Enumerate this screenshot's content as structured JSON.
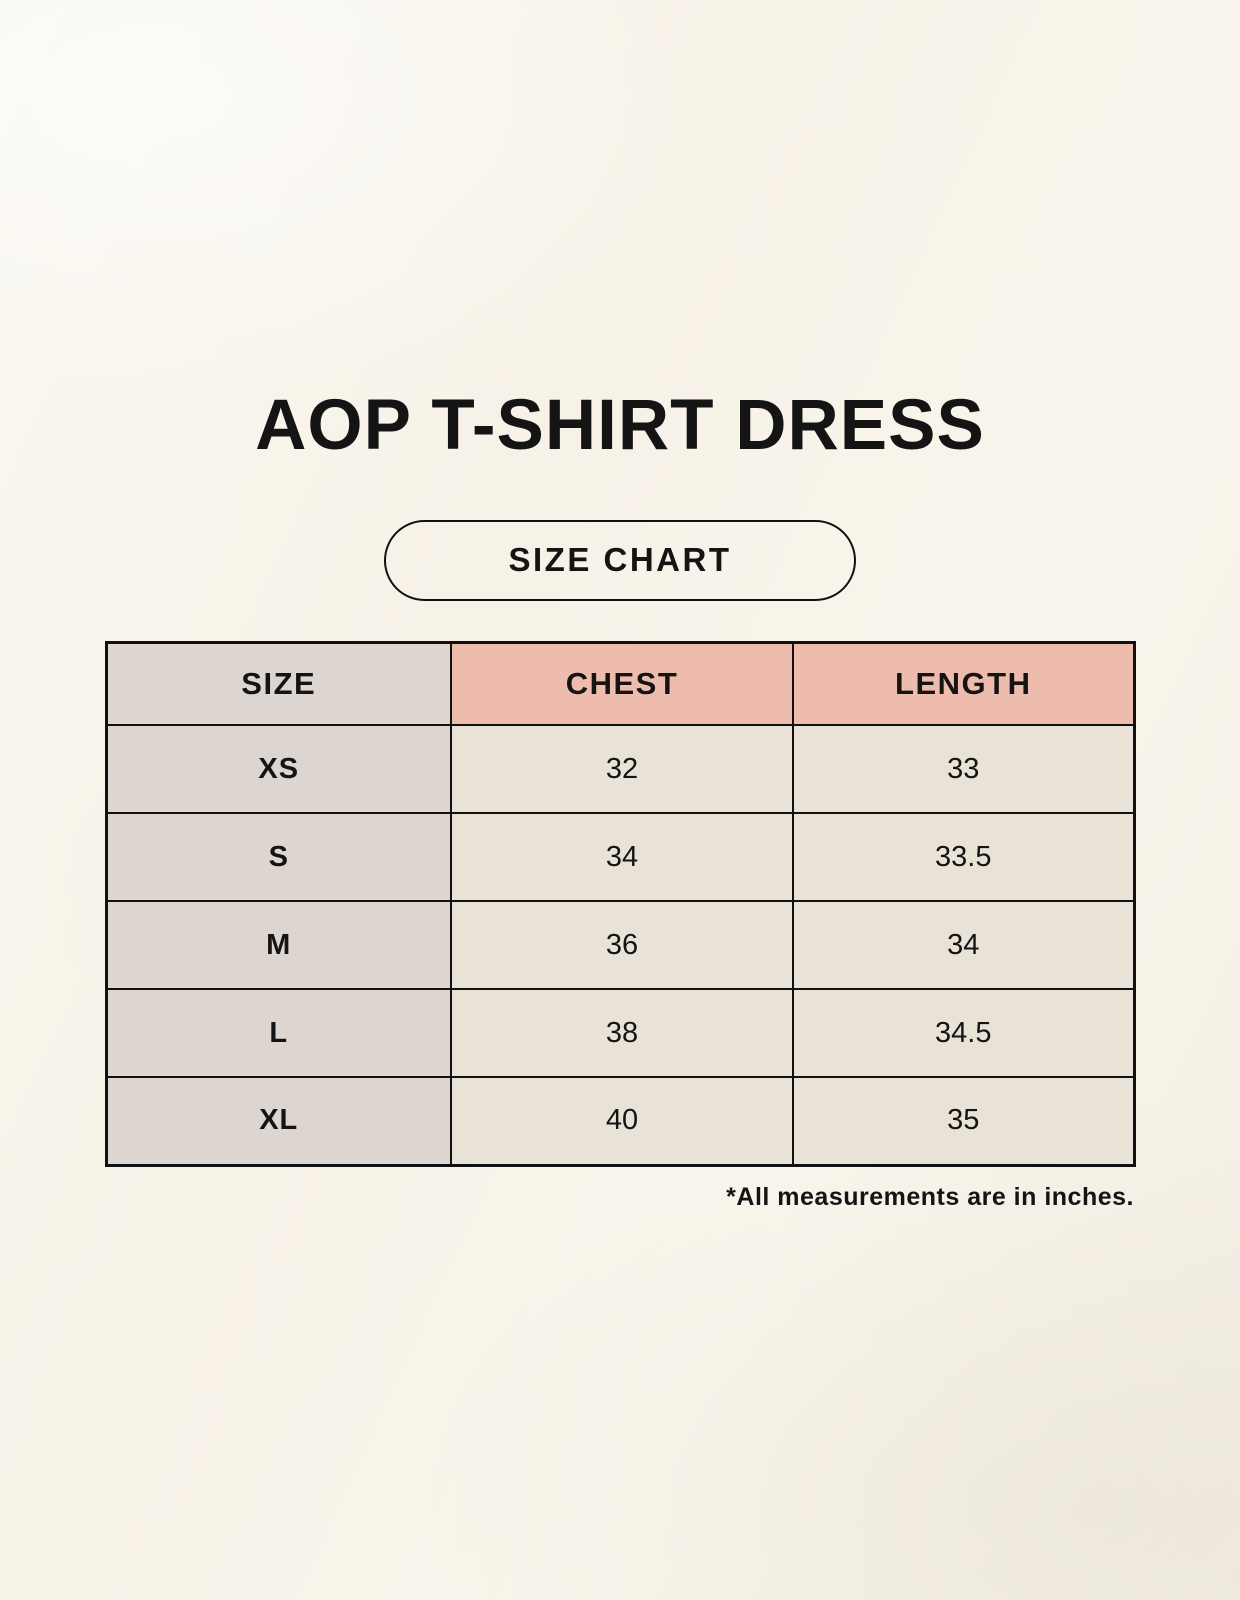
{
  "title": "AOP T-SHIRT DRESS",
  "badge": {
    "label": "SIZE CHART"
  },
  "table": {
    "headers": [
      "SIZE",
      "CHEST",
      "LENGTH"
    ],
    "rows": [
      {
        "size": "XS",
        "chest": "32",
        "length": "33"
      },
      {
        "size": "S",
        "chest": "34",
        "length": "33.5"
      },
      {
        "size": "M",
        "chest": "36",
        "length": "34"
      },
      {
        "size": "L",
        "chest": "38",
        "length": "34.5"
      },
      {
        "size": "XL",
        "chest": "40",
        "length": "35"
      }
    ]
  },
  "footnote": "*All measurements are in inches.",
  "colors": {
    "background": "#f8f4eb",
    "size_column_bg": "#ddd5d0",
    "accent_header_bg": "#eebcad",
    "data_cell_bg": "#e9e2d6",
    "border": "#111111",
    "text": "#141414"
  },
  "chart_data": {
    "type": "table",
    "title": "AOP T-SHIRT DRESS",
    "subtitle": "SIZE CHART",
    "columns": [
      "SIZE",
      "CHEST",
      "LENGTH"
    ],
    "rows": [
      [
        "XS",
        32,
        33
      ],
      [
        "S",
        34,
        33.5
      ],
      [
        "M",
        36,
        34
      ],
      [
        "L",
        38,
        34.5
      ],
      [
        "XL",
        40,
        35
      ]
    ],
    "note": "*All measurements are in inches.",
    "units": "inches"
  }
}
